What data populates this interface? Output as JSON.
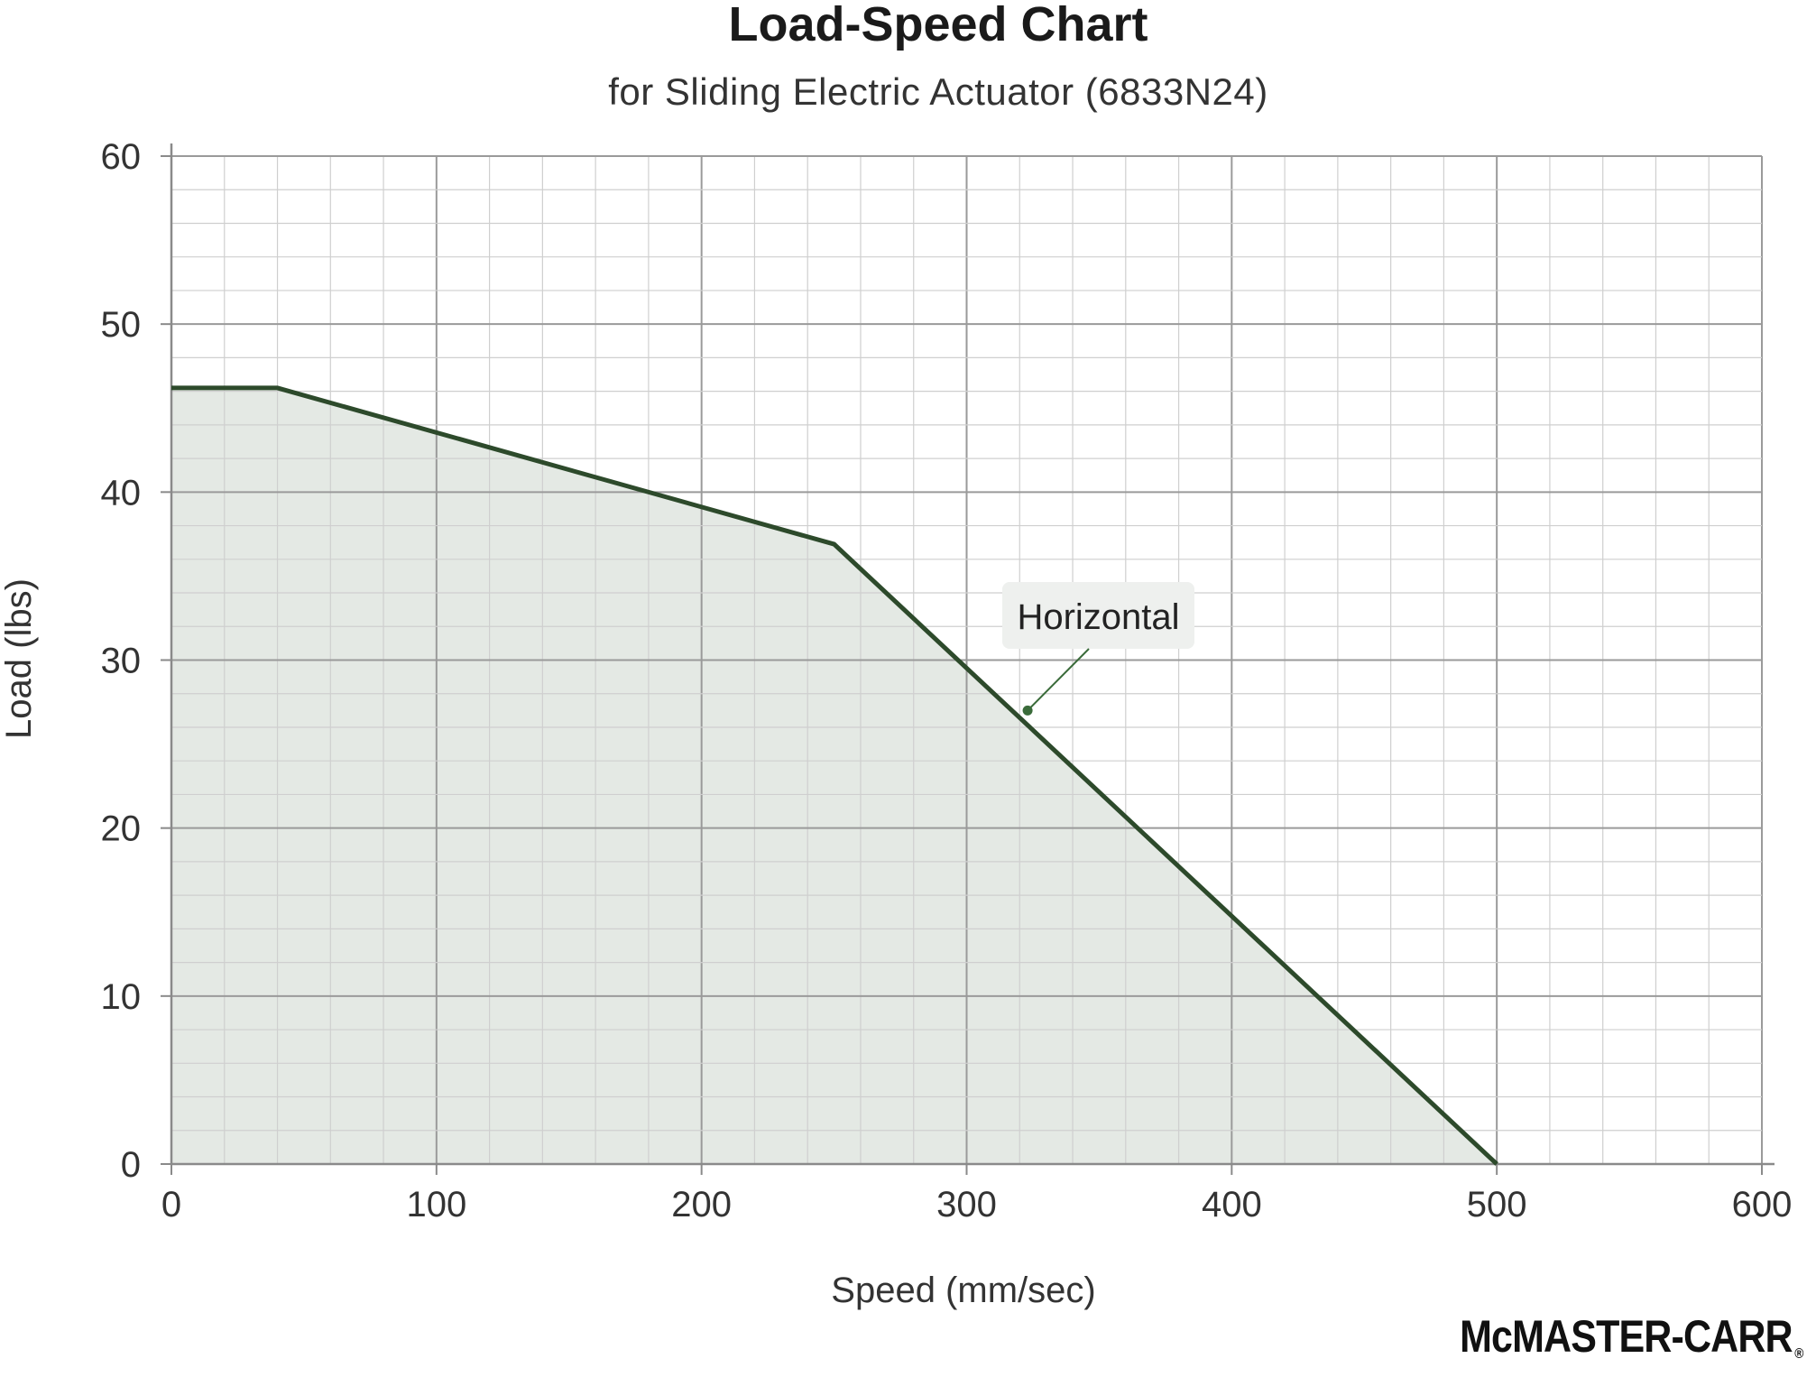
{
  "colors": {
    "line": "#2d4a2b",
    "fill": "#e4e9e4",
    "grid_major": "#9a9a9a",
    "grid_minor": "#cfcfcf",
    "callout_bg": "#eef0ee",
    "callout_marker": "#3a6b3a"
  },
  "logo": {
    "text": "McMASTER-CARR",
    "mark": "®"
  },
  "chart_data": {
    "type": "line",
    "title": "Load-Speed Chart",
    "subtitle": "for Sliding Electric Actuator (6833N24)",
    "xlabel": "Speed (mm/sec)",
    "ylabel": "Load (lbs)",
    "xlim": [
      0,
      600
    ],
    "ylim": [
      0,
      60
    ],
    "x_ticks": [
      0,
      100,
      200,
      300,
      400,
      500,
      600
    ],
    "y_ticks": [
      0,
      10,
      20,
      30,
      40,
      50,
      60
    ],
    "x_minor_step": 20,
    "y_minor_step": 2,
    "grid": true,
    "area_fill_under_line": true,
    "series": [
      {
        "name": "Horizontal",
        "x": [
          0,
          40,
          250,
          500
        ],
        "y": [
          46.2,
          46.2,
          36.9,
          0
        ]
      }
    ],
    "annotations": [
      {
        "text": "Horizontal",
        "points_to": [
          323,
          27
        ]
      }
    ]
  }
}
